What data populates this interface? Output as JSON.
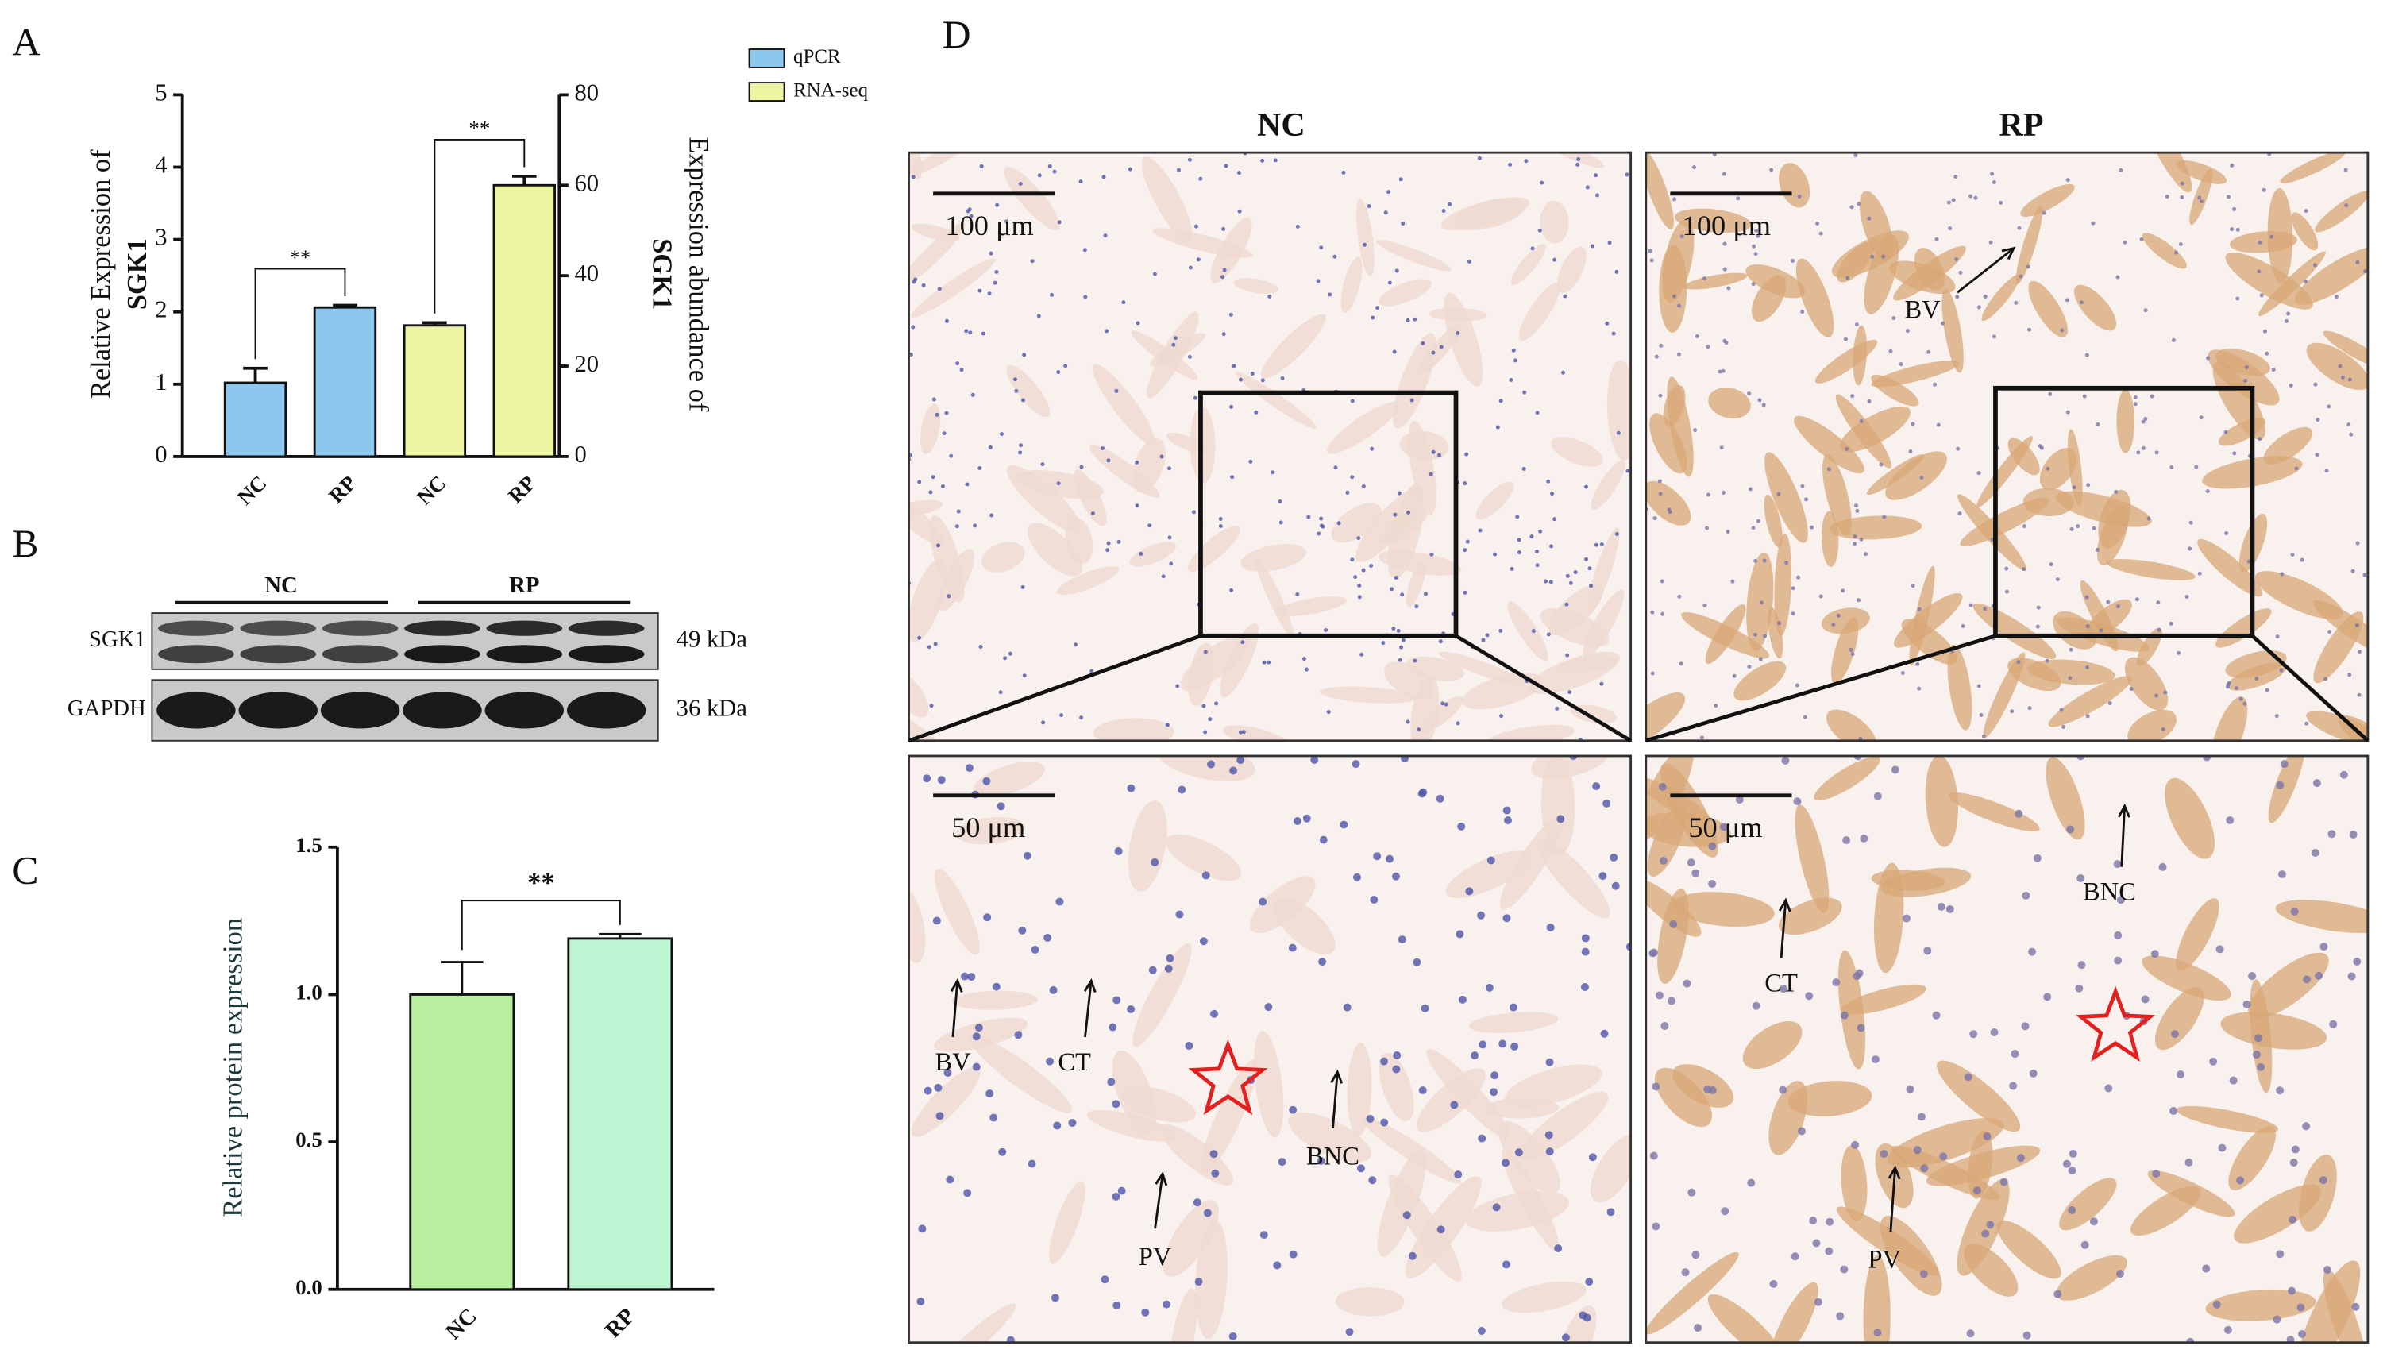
{
  "panel_labels": [
    "A",
    "B",
    "C",
    "D"
  ],
  "chart_data": [
    {
      "type": "bar",
      "categories": [
        "NC",
        "RP",
        "NC",
        "RP"
      ],
      "series": [
        {
          "name": "qPCR",
          "color": "#8cc8ee",
          "values": [
            1.02,
            2.06,
            null,
            null
          ],
          "errors": [
            0.2,
            0.03,
            null,
            null
          ]
        },
        {
          "name": "RNA-seq",
          "color": "#eef5a2",
          "axis": "y2",
          "values": [
            null,
            null,
            29,
            60
          ],
          "errors": [
            null,
            null,
            0.6,
            2
          ]
        }
      ],
      "ylabel": [
        "Relative Expression of",
        "SGK1"
      ],
      "y2label": [
        "Expression abundance of",
        "SGK1"
      ],
      "ylim": [
        0,
        5
      ],
      "yticks": [
        0,
        1,
        2,
        3,
        4,
        5
      ],
      "y2lim": [
        0,
        80
      ],
      "y2ticks": [
        0,
        20,
        40,
        60,
        80
      ],
      "annotations": [
        "**",
        "**"
      ],
      "legend": "upper right"
    },
    {
      "type": "bar",
      "categories": [
        "NC",
        "RP"
      ],
      "values": [
        1.0,
        1.19
      ],
      "errors": [
        0.11,
        0.015
      ],
      "colors": [
        "#b8f0a0",
        "#bdf5d2"
      ],
      "ylabel": "Relative protein expression",
      "ylim": [
        0,
        1.5
      ],
      "yticks": [
        {
          "value": 0,
          "label": "0.0"
        },
        {
          "value": 0.5,
          "label": "0.5"
        },
        {
          "value": 1,
          "label": "1.0"
        },
        {
          "value": 1.5,
          "label": "1.5"
        }
      ],
      "annotations": [
        "**"
      ]
    }
  ],
  "blot": {
    "groups": [
      "NC",
      "RP"
    ],
    "rows": [
      {
        "label": "SGK1",
        "size": "49 kDa"
      },
      {
        "label": "GAPDH",
        "size": "36 kDa"
      }
    ]
  },
  "histology": {
    "columns": [
      "NC",
      "RP"
    ],
    "panels": [
      {
        "scale": "100 μm",
        "labels": []
      },
      {
        "scale": "100 μm",
        "labels": [
          "BV"
        ]
      },
      {
        "scale": "50 μm",
        "labels": [
          "BV",
          "CT",
          "BNC",
          "PV"
        ]
      },
      {
        "scale": "50 μm",
        "labels": [
          "CT",
          "BNC",
          "PV"
        ]
      }
    ]
  }
}
